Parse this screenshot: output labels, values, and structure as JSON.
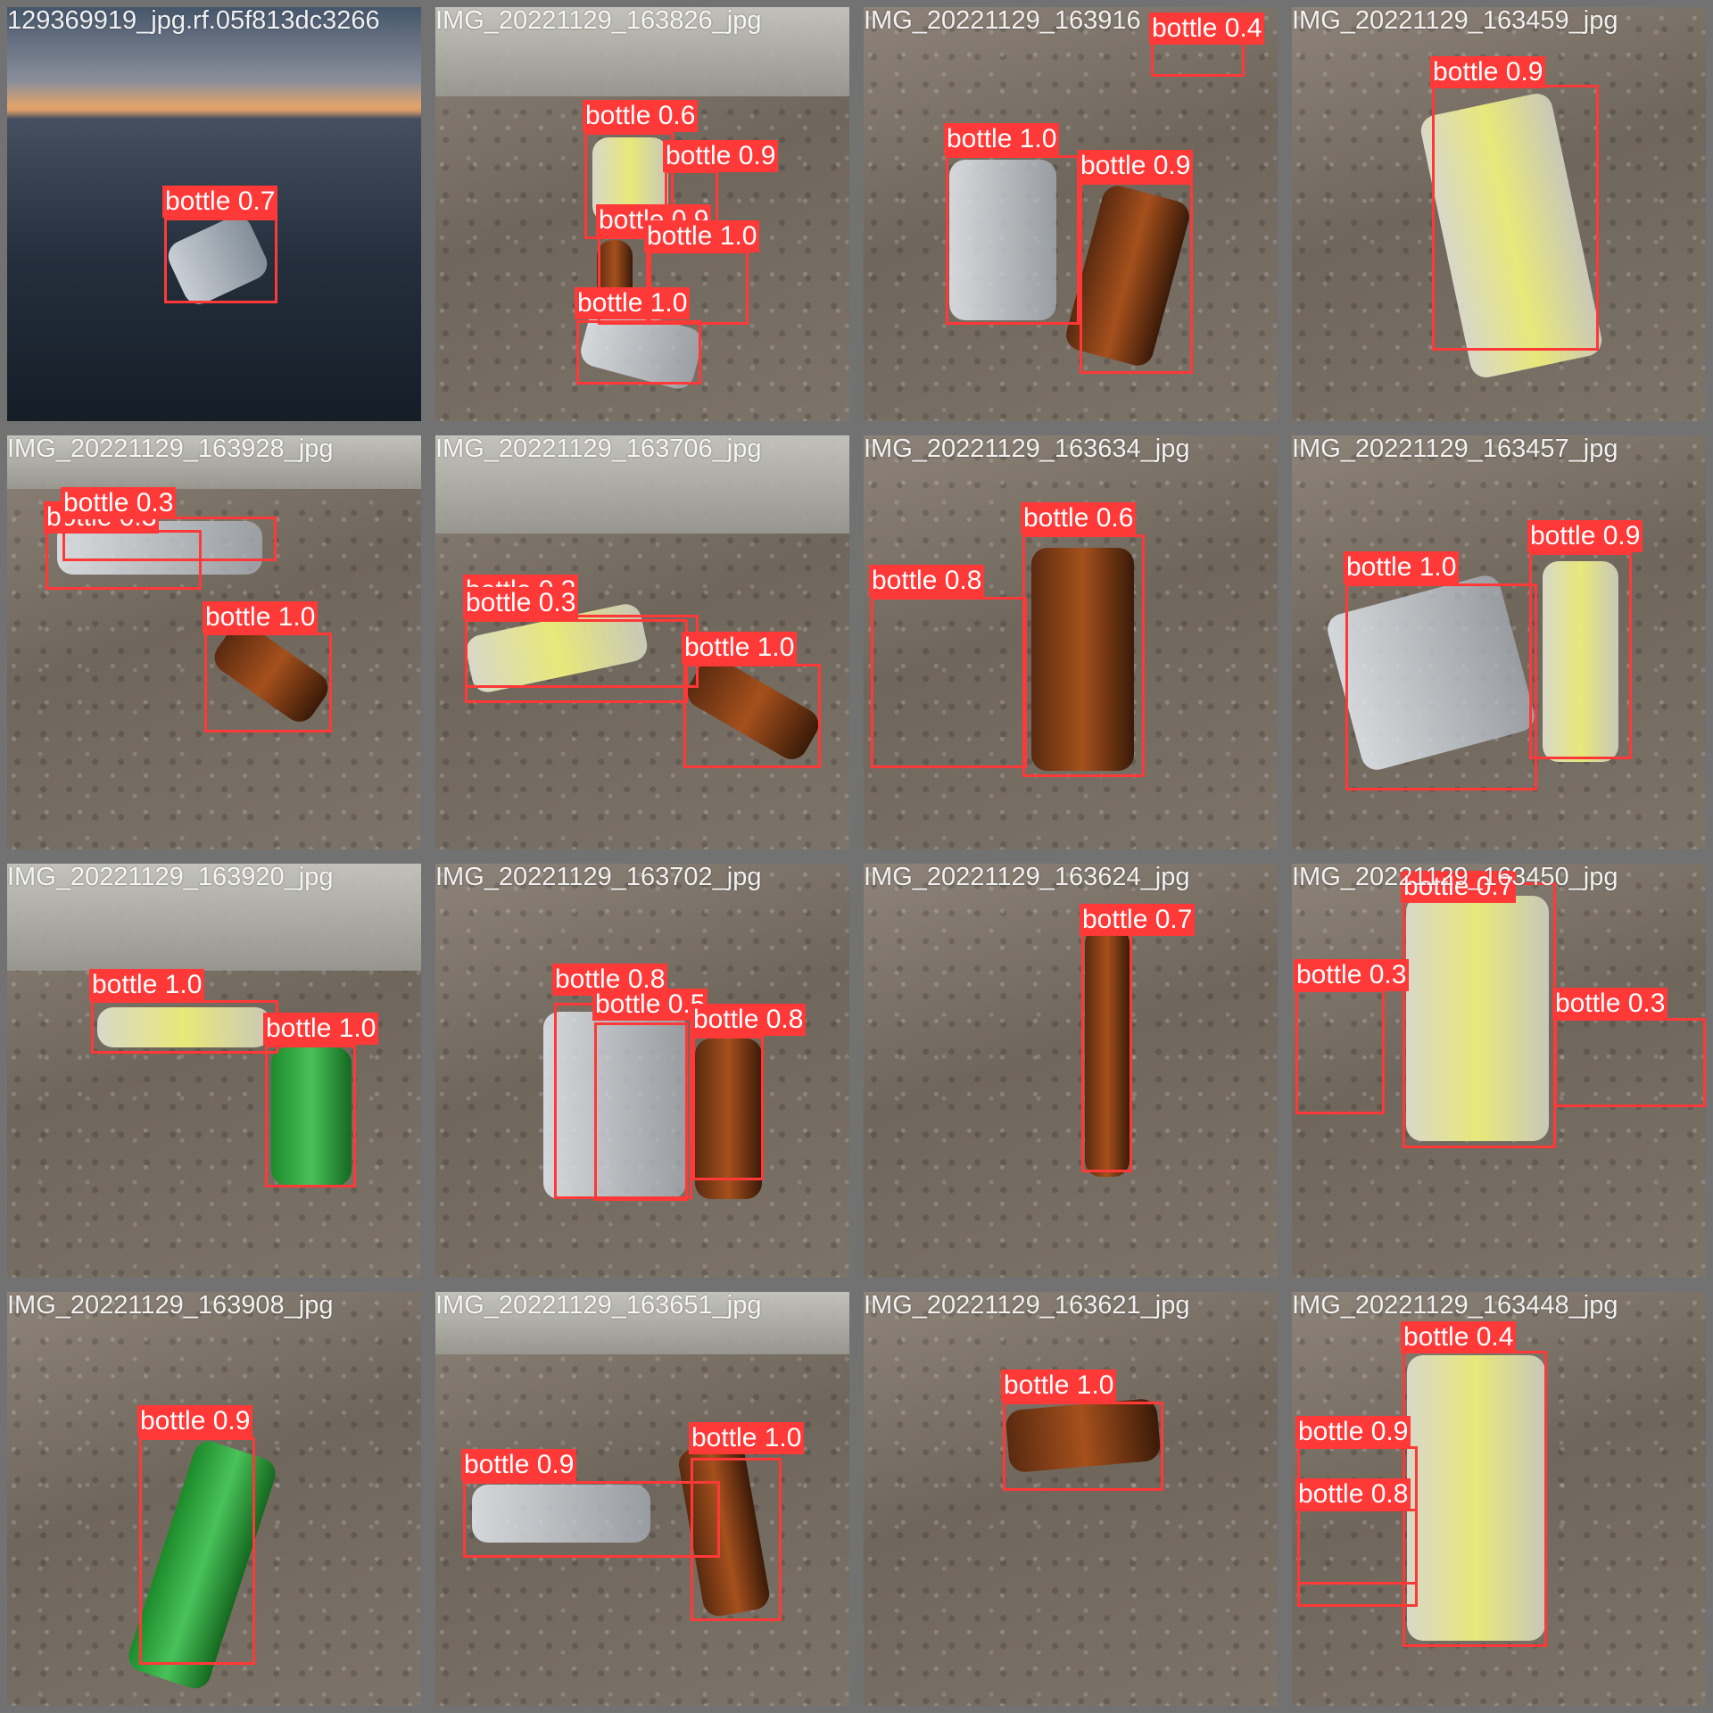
{
  "tiles": [
    {
      "filename": "129369919_jpg.rf.05f813dc3266",
      "scene": "sea",
      "detections": [
        {
          "label": "bottle 0.7"
        }
      ]
    },
    {
      "filename": "IMG_20221129_163826_jpg",
      "scene": "ground",
      "detections": [
        {
          "label": "bottle 0.6"
        },
        {
          "label": "bottle 0.9"
        },
        {
          "label": "bottle 0.9"
        },
        {
          "label": "bottle 1.0"
        },
        {
          "label": "bottle 1.0"
        }
      ]
    },
    {
      "filename": "IMG_20221129_163916",
      "scene": "ground",
      "detections": [
        {
          "label": "bottle 0.4"
        },
        {
          "label": "bottle 1.0"
        },
        {
          "label": "bottle 0.9"
        }
      ]
    },
    {
      "filename": "IMG_20221129_163459_jpg",
      "scene": "ground",
      "detections": [
        {
          "label": "bottle 0.9"
        }
      ]
    },
    {
      "filename": "IMG_20221129_163928_jpg",
      "scene": "ground",
      "detections": [
        {
          "label": "bottle 0.3"
        },
        {
          "label": "bottle 0.3"
        },
        {
          "label": "bottle 1.0"
        }
      ]
    },
    {
      "filename": "IMG_20221129_163706_jpg",
      "scene": "ground",
      "detections": [
        {
          "label": "bottle 0.3"
        },
        {
          "label": "bottle 0.3"
        },
        {
          "label": "bottle 1.0"
        }
      ]
    },
    {
      "filename": "IMG_20221129_163634_jpg",
      "scene": "ground",
      "detections": [
        {
          "label": "bottle 0.6"
        },
        {
          "label": "bottle 0.8"
        }
      ]
    },
    {
      "filename": "IMG_20221129_163457_jpg",
      "scene": "ground",
      "detections": [
        {
          "label": "bottle 0.9"
        },
        {
          "label": "bottle 1.0"
        }
      ]
    },
    {
      "filename": "IMG_20221129_163920_jpg",
      "scene": "ground",
      "detections": [
        {
          "label": "bottle 1.0"
        },
        {
          "label": "bottle 1.0"
        }
      ]
    },
    {
      "filename": "IMG_20221129_163702_jpg",
      "scene": "ground",
      "detections": [
        {
          "label": "bottle 0.8"
        },
        {
          "label": "bottle 0.5"
        },
        {
          "label": "bottle 0.8"
        }
      ]
    },
    {
      "filename": "IMG_20221129_163624_jpg",
      "scene": "ground",
      "detections": [
        {
          "label": "bottle 0.7"
        }
      ]
    },
    {
      "filename": "IMG_20221129_163450_jpg",
      "scene": "ground",
      "detections": [
        {
          "label": "bottle 0.7"
        },
        {
          "label": "bottle 0.3"
        },
        {
          "label": "bottle 0.3"
        }
      ]
    },
    {
      "filename": "IMG_20221129_163908_jpg",
      "scene": "ground",
      "detections": [
        {
          "label": "bottle 0.9"
        }
      ]
    },
    {
      "filename": "IMG_20221129_163651_jpg",
      "scene": "ground",
      "detections": [
        {
          "label": "bottle 0.9"
        },
        {
          "label": "bottle 1.0"
        }
      ]
    },
    {
      "filename": "IMG_20221129_163621_jpg",
      "scene": "ground",
      "detections": [
        {
          "label": "bottle 1.0"
        }
      ]
    },
    {
      "filename": "IMG_20221129_163448_jpg",
      "scene": "ground",
      "detections": [
        {
          "label": "bottle 0.4"
        },
        {
          "label": "bottle 0.9"
        },
        {
          "label": "bottle 0.8"
        }
      ]
    }
  ]
}
